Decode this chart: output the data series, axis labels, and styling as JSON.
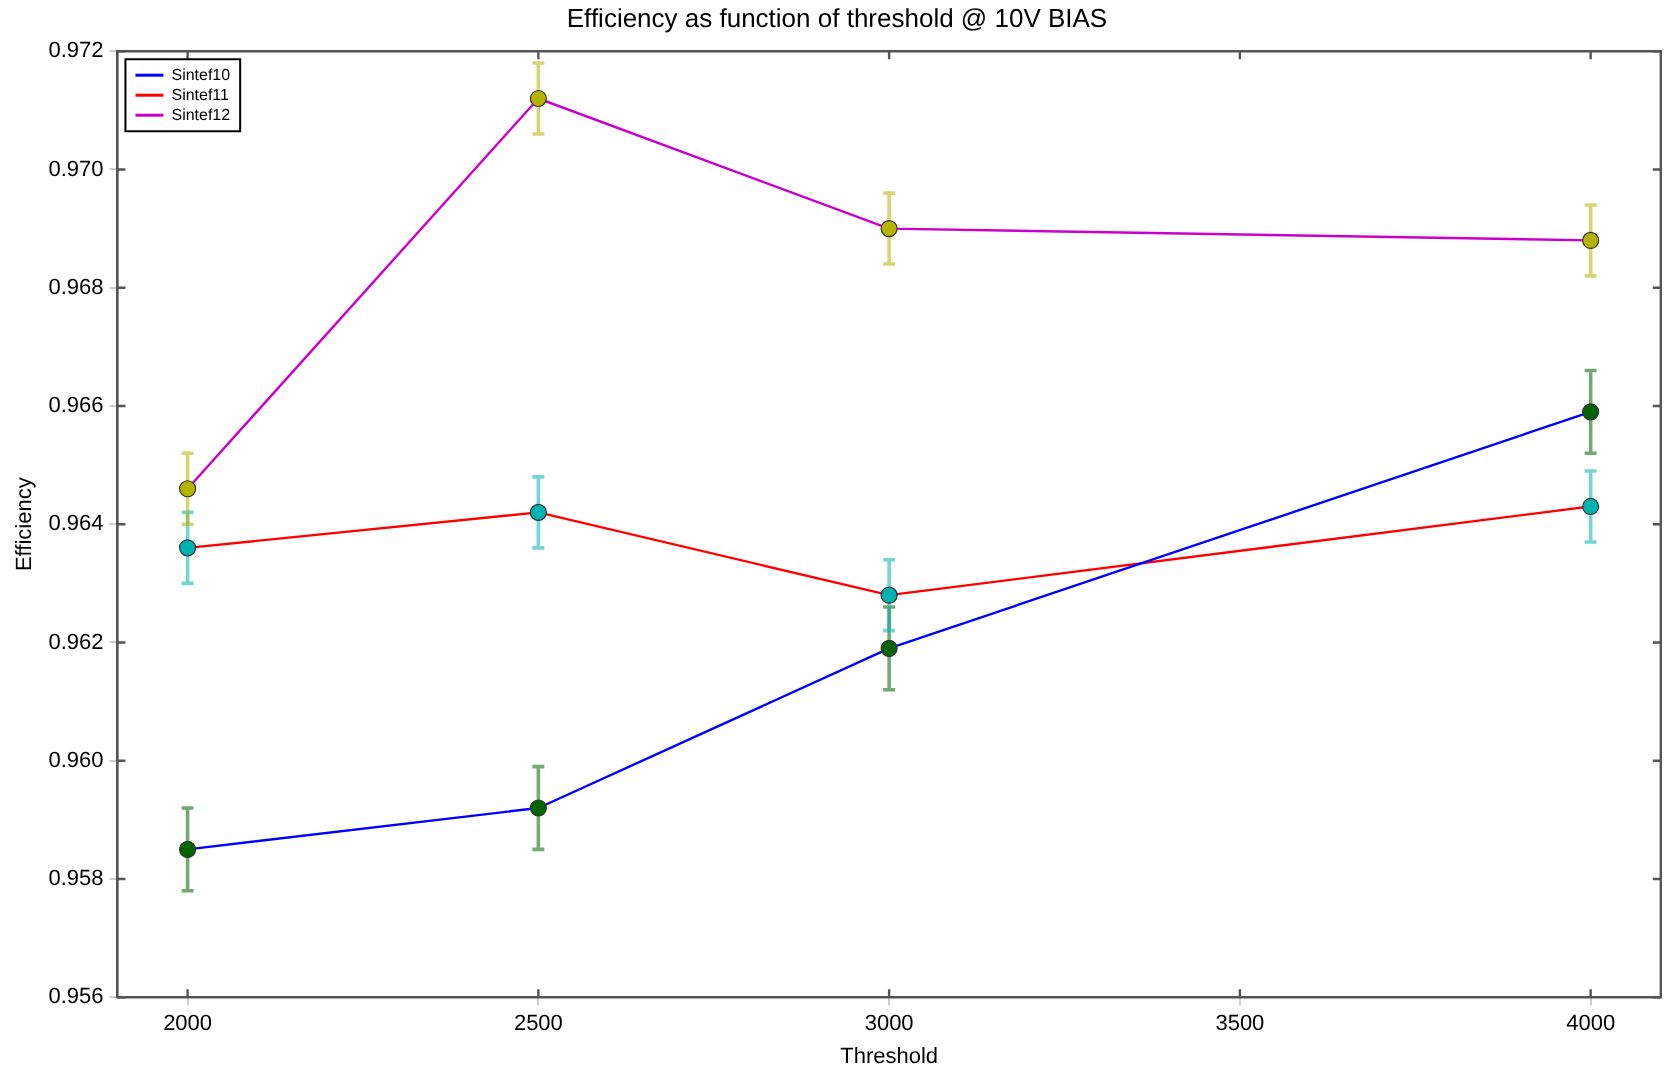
{
  "chart_data": {
    "type": "line",
    "title": "Efficiency as function of threshold @ 10V BIAS",
    "xlabel": "Threshold",
    "ylabel": "Efficiency",
    "x": [
      2000,
      2500,
      3000,
      4000
    ],
    "xlim": [
      1900,
      4100
    ],
    "xticks": [
      2000,
      2500,
      3000,
      3500,
      4000
    ],
    "ylim": [
      0.956,
      0.972
    ],
    "yticks": [
      0.956,
      0.958,
      {
        "value": 0.96,
        "label": "0.960"
      },
      0.962,
      0.964,
      0.966,
      0.968,
      {
        "value": 0.97,
        "label": "0.970"
      },
      0.972
    ],
    "grid": false,
    "legend": "top left",
    "marker": "circle",
    "line_style": "solid",
    "series": [
      {
        "name": "Sintef10",
        "color": "#0000ff",
        "colors": [
          "#006400",
          "#006400",
          "#006400",
          "#006400"
        ],
        "values": [
          0.9585,
          0.9592,
          0.9619,
          0.9659
        ],
        "errors": [
          0.0007,
          0.0007,
          0.0007,
          0.0007
        ]
      },
      {
        "name": "Sintef11",
        "color": "#ff0000",
        "colors": [
          "#00b3b3",
          "#00b3b3",
          "#00b3b3",
          "#00b3b3"
        ],
        "values": [
          0.9636,
          0.9642,
          0.9628,
          0.9643
        ],
        "errors": [
          0.0006,
          0.0006,
          0.0006,
          0.0006
        ]
      },
      {
        "name": "Sintef12",
        "color": "#cc00cc",
        "colors": [
          "#b3b300",
          "#b3b300",
          "#b3b300",
          "#b3b300"
        ],
        "values": [
          0.9646,
          0.9712,
          0.969,
          0.9688
        ],
        "errors": [
          0.0006,
          0.0006,
          0.0006,
          0.0006
        ]
      }
    ]
  }
}
